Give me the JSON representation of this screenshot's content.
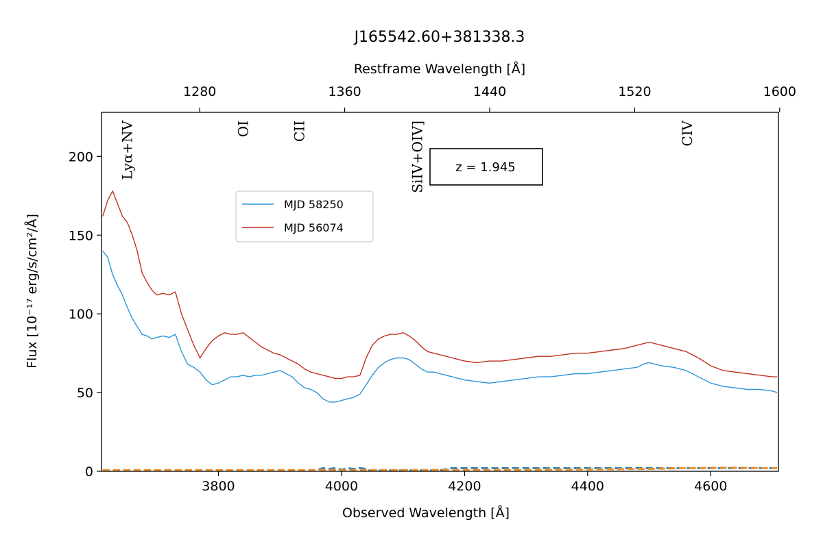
{
  "chart_data": {
    "type": "line",
    "title": "J165542.60+381338.3",
    "xlabel": "Observed Wavelength [Å]",
    "ylabel": "Flux [10⁻¹⁷ erg/s/cm²/Å]",
    "top_xlabel": "Restframe Wavelength [Å]",
    "xlim": [
      3610,
      4710
    ],
    "ylim": [
      0,
      228
    ],
    "x_ticks": [
      3800,
      4000,
      4200,
      4400,
      4600
    ],
    "y_ticks": [
      0,
      50,
      100,
      150,
      200
    ],
    "top_ticks": [
      1280,
      1360,
      1440,
      1520,
      1600
    ],
    "redshift": 1.945,
    "annotation": "z = 1.945",
    "grid": false,
    "legend_position": "upper-center-left",
    "lines": [
      {
        "label": "Lyα+NV",
        "rest": 1240
      },
      {
        "label": "OI",
        "rest": 1304
      },
      {
        "label": "CII",
        "rest": 1335
      },
      {
        "label": "SiIV+OIV]",
        "rest": 1400
      },
      {
        "label": "CIV",
        "rest": 1549
      }
    ],
    "series": [
      {
        "name": "MJD 58250",
        "color": "#2b95d8",
        "x": [
          3612,
          3620,
          3628,
          3636,
          3644,
          3652,
          3660,
          3668,
          3676,
          3684,
          3692,
          3700,
          3710,
          3720,
          3730,
          3740,
          3750,
          3760,
          3770,
          3780,
          3790,
          3800,
          3810,
          3820,
          3830,
          3840,
          3850,
          3860,
          3870,
          3880,
          3890,
          3900,
          3910,
          3920,
          3930,
          3940,
          3950,
          3960,
          3970,
          3980,
          3990,
          4000,
          4010,
          4020,
          4030,
          4040,
          4050,
          4060,
          4070,
          4080,
          4090,
          4100,
          4110,
          4120,
          4130,
          4140,
          4150,
          4160,
          4170,
          4180,
          4200,
          4220,
          4240,
          4260,
          4280,
          4300,
          4320,
          4340,
          4360,
          4380,
          4400,
          4420,
          4440,
          4460,
          4480,
          4490,
          4500,
          4520,
          4540,
          4560,
          4580,
          4600,
          4620,
          4640,
          4660,
          4680,
          4700,
          4708
        ],
        "y": [
          140,
          136,
          125,
          118,
          112,
          104,
          97,
          92,
          87,
          86,
          84,
          85,
          86,
          85,
          87,
          76,
          68,
          66,
          63,
          58,
          55,
          56,
          58,
          60,
          60,
          61,
          60,
          61,
          61,
          62,
          63,
          64,
          62,
          60,
          56,
          53,
          52,
          50,
          46,
          44,
          44,
          45,
          46,
          47,
          49,
          55,
          61,
          66,
          69,
          71,
          72,
          72,
          71,
          68,
          65,
          63,
          63,
          62,
          61,
          60,
          58,
          57,
          56,
          57,
          58,
          59,
          60,
          60,
          61,
          62,
          62,
          63,
          64,
          65,
          66,
          68,
          69,
          67,
          66,
          64,
          60,
          56,
          54,
          53,
          52,
          52,
          51,
          50
        ]
      },
      {
        "name": "MJD 56074",
        "color": "#c0301f",
        "x": [
          3612,
          3620,
          3628,
          3636,
          3644,
          3652,
          3660,
          3668,
          3676,
          3684,
          3692,
          3700,
          3710,
          3720,
          3730,
          3740,
          3750,
          3760,
          3770,
          3780,
          3790,
          3800,
          3810,
          3820,
          3830,
          3840,
          3850,
          3860,
          3870,
          3880,
          3890,
          3900,
          3910,
          3920,
          3930,
          3940,
          3950,
          3960,
          3970,
          3980,
          3990,
          4000,
          4010,
          4020,
          4030,
          4040,
          4050,
          4060,
          4070,
          4080,
          4090,
          4100,
          4110,
          4120,
          4130,
          4140,
          4150,
          4160,
          4170,
          4180,
          4200,
          4220,
          4240,
          4260,
          4280,
          4300,
          4320,
          4340,
          4360,
          4380,
          4400,
          4420,
          4440,
          4460,
          4480,
          4490,
          4500,
          4520,
          4540,
          4560,
          4580,
          4600,
          4620,
          4640,
          4660,
          4680,
          4700,
          4708
        ],
        "y": [
          162,
          172,
          178,
          170,
          162,
          158,
          150,
          140,
          126,
          120,
          115,
          112,
          113,
          112,
          114,
          100,
          90,
          80,
          72,
          78,
          83,
          86,
          88,
          87,
          87,
          88,
          85,
          82,
          79,
          77,
          75,
          74,
          72,
          70,
          68,
          65,
          63,
          62,
          61,
          60,
          59,
          59,
          60,
          60,
          61,
          72,
          80,
          84,
          86,
          87,
          87,
          88,
          86,
          83,
          79,
          76,
          75,
          74,
          73,
          72,
          70,
          69,
          70,
          70,
          71,
          72,
          73,
          73,
          74,
          75,
          75,
          76,
          77,
          78,
          80,
          81,
          82,
          80,
          78,
          76,
          72,
          67,
          64,
          63,
          62,
          61,
          60,
          60
        ]
      }
    ],
    "error_series": [
      {
        "name": "",
        "color": "#3282b8",
        "x": [
          3612,
          3960,
          3962,
          3970,
          3980,
          3990,
          4000,
          4010,
          4020,
          4030,
          4040,
          4042,
          4160,
          4165,
          4180,
          4200,
          4250,
          4300,
          4350,
          4400,
          4450,
          4500,
          4550,
          4600,
          4650,
          4700,
          4708
        ],
        "y": [
          0.5,
          0.5,
          1.0,
          2.0,
          1.5,
          2.0,
          1.0,
          2.0,
          1.5,
          2.0,
          1.5,
          0.5,
          0.5,
          1.0,
          2.0,
          2.0,
          2.0,
          2.0,
          2.0,
          2.0,
          2.0,
          2.0,
          2.0,
          2.0,
          2.0,
          2.0,
          2.0
        ]
      },
      {
        "name": "",
        "color": "#f0932b",
        "x": [
          3612,
          3700,
          3800,
          3900,
          4000,
          4100,
          4200,
          4300,
          4400,
          4500,
          4560,
          4600,
          4650,
          4700,
          4708
        ],
        "y": [
          0.8,
          0.8,
          0.8,
          0.8,
          0.8,
          0.8,
          0.9,
          1.0,
          1.2,
          1.5,
          2.0,
          2.2,
          2.2,
          2.0,
          2.0
        ]
      }
    ]
  }
}
